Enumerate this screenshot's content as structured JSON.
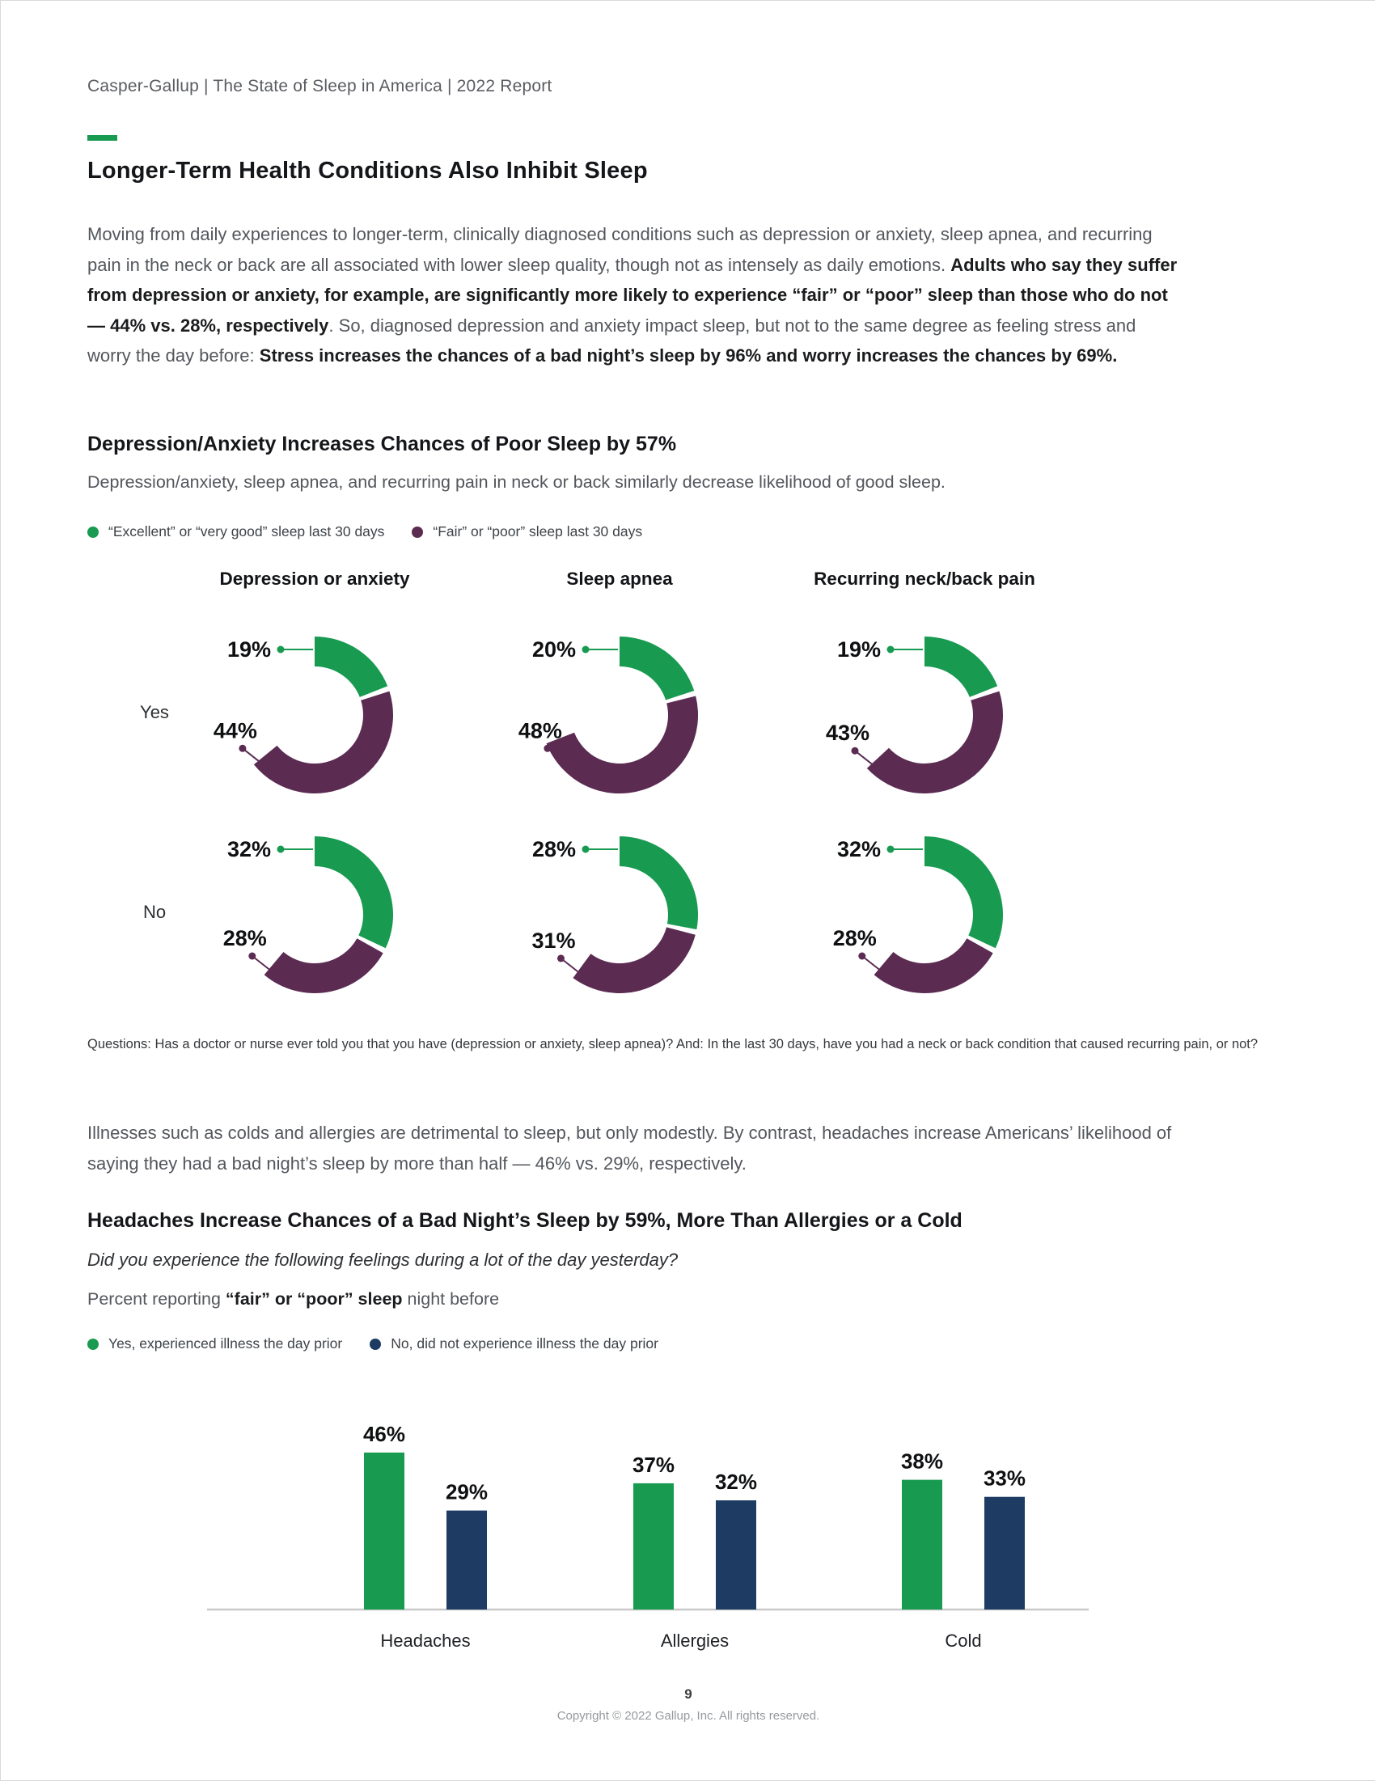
{
  "header": "Casper-Gallup  |  The State of Sleep in America  |  2022 Report",
  "title": "Longer-Term Health Conditions Also Inhibit Sleep",
  "intro": {
    "part1": "Moving from daily experiences to longer-term, clinically diagnosed conditions such as depression or anxiety, sleep apnea, and recurring pain in the neck or back are all associated with lower sleep quality, though not as intensely as daily emotions. ",
    "bold1": "Adults who say they suffer from depression or anxiety, for example, are significantly more likely to experience “fair” or “poor” sleep than those who do not — 44% vs. 28%, respectively",
    "part2": ". So, diagnosed depression and anxiety impact sleep, but not to the same degree as feeling stress and worry the day before: ",
    "bold2": "Stress increases the chances of a bad night’s sleep by 96% and worry increases the chances by 69%."
  },
  "donut_section": {
    "title": "Depression/Anxiety Increases Chances of Poor Sleep by 57%",
    "subtitle": "Depression/anxiety, sleep apnea, and recurring pain in neck or back similarly decrease likelihood of good sleep.",
    "legend": [
      {
        "label": "“Excellent” or “very good” sleep last 30 days",
        "color": "#189a51"
      },
      {
        "label": "“Fair” or “poor” sleep last 30 days",
        "color": "#5b2b52"
      }
    ],
    "columns": [
      "Depression or anxiety",
      "Sleep apnea",
      "Recurring neck/back pain"
    ],
    "rows": [
      "Yes",
      "No"
    ],
    "footnote": "Questions: Has a doctor or nurse ever told you that you have (depression or anxiety, sleep apnea)? And: In the last 30 days, have you had a neck or back condition that caused recurring pain, or not?"
  },
  "middle_paragraph": "Illnesses such as colds and allergies are detrimental to sleep, but only modestly. By contrast, headaches increase Americans’ likelihood of saying they had a bad night’s sleep by more than half — 46% vs. 29%, respectively.",
  "bar_section": {
    "title": "Headaches Increase Chances of a Bad Night’s Sleep by 59%, More Than Allergies or a Cold",
    "question": "Did you experience the following feelings during a lot of the day yesterday?",
    "reporting_prefix": "Percent reporting ",
    "reporting_bold": "“fair” or “poor” sleep",
    "reporting_suffix": " night before",
    "legend": [
      {
        "label": "Yes, experienced illness the day prior",
        "color": "#189a51"
      },
      {
        "label": "No, did not experience illness the day prior",
        "color": "#1e3c63"
      }
    ]
  },
  "footer": {
    "page_number": "9",
    "copyright": "Copyright © 2022 Gallup, Inc. All rights reserved."
  },
  "chart_data": [
    {
      "type": "donut-grid",
      "title": "Depression/Anxiety Increases Chances of Poor Sleep by 57%",
      "legend": [
        "“Excellent” or “very good” sleep last 30 days",
        "“Fair” or “poor” sleep last 30 days"
      ],
      "columns": [
        "Depression or anxiety",
        "Sleep apnea",
        "Recurring neck/back pain"
      ],
      "rows": [
        "Yes",
        "No"
      ],
      "series_keys": [
        "excellent_or_very_good_pct",
        "fair_or_poor_pct"
      ],
      "values": [
        [
          [
            19,
            44
          ],
          [
            20,
            48
          ],
          [
            19,
            43
          ]
        ],
        [
          [
            32,
            28
          ],
          [
            28,
            31
          ],
          [
            32,
            28
          ]
        ]
      ],
      "colors": {
        "excellent": "#189a51",
        "fair_poor": "#5b2b52"
      },
      "notes": "Each donut: green segment = excellent/very good sleep %, plum segment = fair/poor sleep %, remainder blank; segments start at 12 o'clock clockwise."
    },
    {
      "type": "bar",
      "title": "Headaches Increase Chances of a Bad Night’s Sleep by 59%, More Than Allergies or a Cold",
      "categories": [
        "Headaches",
        "Allergies",
        "Cold"
      ],
      "series": [
        {
          "name": "Yes, experienced illness the day prior",
          "values": [
            46,
            37,
            38
          ],
          "color": "#189a51"
        },
        {
          "name": "No, did not experience illness the day prior",
          "values": [
            29,
            32,
            33
          ],
          "color": "#1e3c63"
        }
      ],
      "ylabel": "Percent reporting “fair” or “poor” sleep night before",
      "ylim": [
        0,
        50
      ],
      "grid": false,
      "legend_position": "top-left",
      "value_labels": true
    }
  ]
}
